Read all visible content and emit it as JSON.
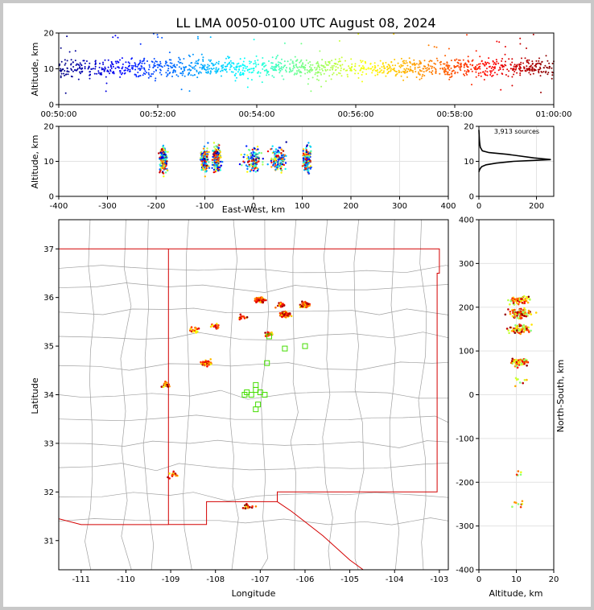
{
  "title": "LL LMA 0050-0100 UTC August 08, 2024",
  "colors": {
    "frame": "#c8c8c8",
    "panel": "#ffffff",
    "state": "#d40000",
    "county": "#a0a0a0",
    "station": "#44dd00"
  },
  "sources_label": "3,913 sources",
  "chart_data": [
    {
      "name": "time-altitude",
      "type": "scatter",
      "xlabel": "",
      "ylabel": "Altitude, km",
      "xlim": [
        "00:50:00",
        "01:00:00"
      ],
      "ylim": [
        0,
        20
      ],
      "xticks": [
        "00:50:00",
        "00:52:00",
        "00:54:00",
        "00:56:00",
        "00:58:00",
        "01:00:00"
      ],
      "yticks": [
        "0",
        "10",
        "20"
      ],
      "color_by": "time (blue to red)"
    },
    {
      "name": "east-west-altitude",
      "type": "scatter",
      "xlabel": "East-West, km",
      "ylabel": "Altitude, km",
      "xlim": [
        -400,
        400
      ],
      "ylim": [
        0,
        20
      ],
      "xticks": [
        "-400",
        "-300",
        "-200",
        "-100",
        "0",
        "100",
        "200",
        "300",
        "400"
      ],
      "yticks": [
        "0",
        "10",
        "20"
      ],
      "clusters_x": [
        -185,
        -100,
        -75,
        0,
        50,
        110
      ]
    },
    {
      "name": "altitude-histogram",
      "type": "line",
      "xlim": [
        0,
        260
      ],
      "ylim": [
        0,
        20
      ],
      "xticks": [
        "0",
        "200"
      ],
      "yticks": [
        "0",
        "10",
        "20"
      ],
      "x": [
        0,
        2,
        5,
        10,
        25,
        60,
        120,
        200,
        250,
        190,
        100,
        35,
        12,
        5,
        3,
        2,
        1,
        0
      ],
      "y": [
        7,
        7.5,
        8,
        8.5,
        9,
        9.5,
        10,
        10.3,
        10.5,
        11,
        12,
        12.5,
        13,
        14,
        15,
        16,
        17,
        19
      ]
    },
    {
      "name": "plan-view-map",
      "type": "scatter",
      "xlabel": "Longitude",
      "ylabel": "Latitude",
      "xlim": [
        -111.5,
        -102.8
      ],
      "ylim": [
        30.4,
        37.6
      ],
      "xticks": [
        "-111",
        "-110",
        "-109",
        "-108",
        "-107",
        "-106",
        "-105",
        "-104",
        "-103"
      ],
      "yticks": [
        "31",
        "32",
        "33",
        "34",
        "35",
        "36",
        "37"
      ],
      "stations": [
        [
          -107.3,
          34.05
        ],
        [
          -107.2,
          34.0
        ],
        [
          -107.1,
          34.1
        ],
        [
          -107.0,
          34.05
        ],
        [
          -106.9,
          34.0
        ],
        [
          -107.1,
          33.7
        ],
        [
          -107.05,
          33.8
        ],
        [
          -106.8,
          35.2
        ],
        [
          -106.45,
          34.95
        ],
        [
          -106.0,
          35.0
        ],
        [
          -106.85,
          34.65
        ],
        [
          -107.1,
          34.2
        ],
        [
          -107.35,
          34.0
        ]
      ],
      "clusters": [
        [
          -106.45,
          35.65
        ],
        [
          -106.0,
          35.85
        ],
        [
          -107.0,
          35.95
        ],
        [
          -108.2,
          34.65
        ],
        [
          -108.0,
          35.4
        ],
        [
          -106.8,
          35.25
        ],
        [
          -107.4,
          35.6
        ],
        [
          -108.5,
          35.35
        ],
        [
          -109.1,
          34.2
        ],
        [
          -108.95,
          32.35
        ],
        [
          -107.25,
          31.7
        ],
        [
          -106.55,
          35.85
        ]
      ]
    },
    {
      "name": "altitude-north-south",
      "type": "scatter",
      "xlabel": "Altitude, km",
      "ylabel": "North-South, km",
      "xlim": [
        0,
        20
      ],
      "ylim": [
        -400,
        400
      ],
      "xticks": [
        "0",
        "10",
        "20"
      ],
      "yticks": [
        "-400",
        "-300",
        "-200",
        "-100",
        "0",
        "100",
        "200",
        "300",
        "400"
      ]
    }
  ]
}
